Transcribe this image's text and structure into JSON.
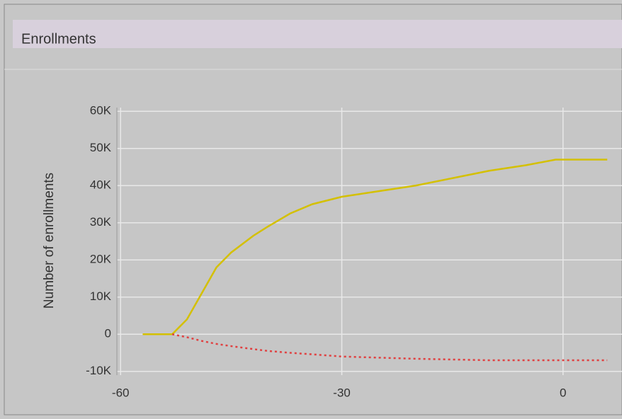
{
  "chart_data": {
    "type": "line",
    "title": "Enrollments",
    "ylabel": "Number of enrollments",
    "x": [
      -57,
      -55,
      -53,
      -51,
      -49,
      -47,
      -45,
      -42,
      -40,
      -37,
      -34,
      -30,
      -25,
      -20,
      -15,
      -10,
      -5,
      -1,
      3,
      6
    ],
    "series": [
      {
        "color": "#d4c000",
        "values": [
          0,
          0,
          0,
          4000,
          11000,
          18000,
          22000,
          26500,
          29000,
          32500,
          35000,
          37000,
          38500,
          40000,
          42000,
          44000,
          45500,
          47000,
          47000,
          47000
        ]
      },
      {
        "color": "#e04040",
        "values": [
          null,
          null,
          0,
          -800,
          -1800,
          -2600,
          -3200,
          -4000,
          -4500,
          -5000,
          -5400,
          -6000,
          -6300,
          -6600,
          -6800,
          -7000,
          -7000,
          -7000,
          -7000,
          -7000
        ]
      }
    ],
    "xlim": [
      -60.5,
      8
    ],
    "xticks": [
      -60,
      -30,
      0
    ],
    "ylim": [
      -11000,
      61000
    ],
    "yticks": [
      {
        "value": -10000,
        "label": "-10K"
      },
      0,
      {
        "value": 10000,
        "label": "10K"
      },
      {
        "value": 20000,
        "label": "20K"
      },
      {
        "value": 30000,
        "label": "30K"
      },
      {
        "value": 40000,
        "label": "40K"
      },
      {
        "value": 50000,
        "label": "50K"
      },
      {
        "value": 60000,
        "label": "60K"
      }
    ],
    "grid": true
  }
}
